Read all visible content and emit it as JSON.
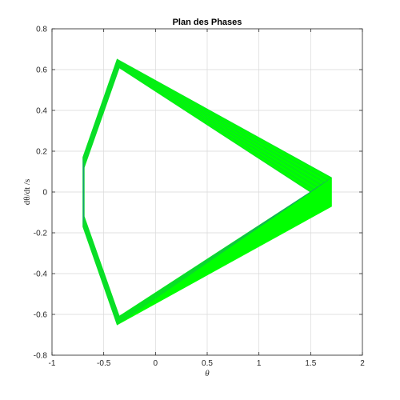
{
  "chart_data": {
    "type": "line",
    "title": "Plan des Phases",
    "xlabel": "θ",
    "ylabel": "dθ/dt /s",
    "xlim": [
      -1,
      2
    ],
    "ylim": [
      -0.8,
      0.8
    ],
    "xticks": [
      -1,
      -0.5,
      0,
      0.5,
      1,
      1.5,
      2
    ],
    "xtick_labels": [
      "-1",
      "-0.5",
      "0",
      "0.5",
      "1",
      "1.5",
      "2"
    ],
    "yticks": [
      -0.8,
      -0.6,
      -0.4,
      -0.2,
      0,
      0.2,
      0.4,
      0.6,
      0.8
    ],
    "ytick_labels": [
      "-0.8",
      "-0.6",
      "-0.4",
      "-0.2",
      "0",
      "0.2",
      "0.4",
      "0.6",
      "0.8"
    ],
    "grid": true,
    "series": [
      {
        "color_fill": "#00ff00",
        "color_line": "#2a6cb0",
        "vertices": [
          {
            "x": -0.37,
            "y": 0.65
          },
          {
            "x": 1.7,
            "y": 0.07
          },
          {
            "x": 1.7,
            "y": -0.07
          },
          {
            "x": -0.37,
            "y": -0.65
          },
          {
            "x": -0.7,
            "y": -0.17
          },
          {
            "x": -0.7,
            "y": 0.17
          }
        ],
        "inner_vertices": [
          {
            "x": -0.35,
            "y": 0.61
          },
          {
            "x": 1.5,
            "y": 0.0
          },
          {
            "x": -0.35,
            "y": -0.61
          },
          {
            "x": -0.69,
            "y": -0.12
          },
          {
            "x": -0.69,
            "y": 0.12
          }
        ]
      }
    ]
  }
}
